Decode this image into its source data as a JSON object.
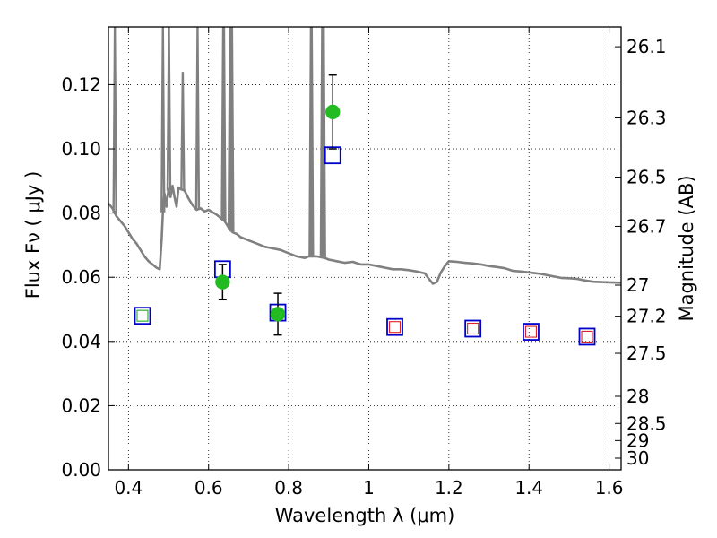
{
  "chart_data": {
    "type": "scatter",
    "xlabel": "Wavelength  λ (μm)",
    "ylabel": "Flux  Fν  ( μJy )",
    "y2label": "Magnitude (AB)",
    "xlim": [
      0.35,
      1.63
    ],
    "ylim": [
      0.0,
      0.138
    ],
    "x_ticks": [
      0.4,
      0.6,
      0.8,
      1.0,
      1.2,
      1.4,
      1.6
    ],
    "x_tick_labels": [
      "0.4",
      "0.6",
      "0.8",
      "1",
      "1.2",
      "1.4",
      "1.6"
    ],
    "y_ticks": [
      0.0,
      0.02,
      0.04,
      0.06,
      0.08,
      0.1,
      0.12
    ],
    "y_tick_labels": [
      "0.00",
      "0.02",
      "0.04",
      "0.06",
      "0.08",
      "0.10",
      "0.12"
    ],
    "y2_ticks": [
      {
        "label": "26.1",
        "value": 26.1
      },
      {
        "label": "26.3",
        "value": 26.3
      },
      {
        "label": "26.5",
        "value": 26.5
      },
      {
        "label": "26.7",
        "value": 26.7
      },
      {
        "label": "27",
        "value": 27.0
      },
      {
        "label": "27.2",
        "value": 27.2
      },
      {
        "label": "27.5",
        "value": 27.5
      },
      {
        "label": "28",
        "value": 28.0
      },
      {
        "label": "28.5",
        "value": 28.5
      },
      {
        "label": "29",
        "value": 29.0
      },
      {
        "label": "30",
        "value": 30.0
      }
    ],
    "grid": true,
    "colors": {
      "model": "#808080",
      "observed": "#22bb22",
      "model_band_box": "#0000cc",
      "inner_green": "#22aa22",
      "inner_red": "#dd2222",
      "errorbar": "#000000"
    },
    "observed_points": [
      {
        "x": 0.635,
        "y": 0.0585,
        "yerr": 0.0055
      },
      {
        "x": 0.773,
        "y": 0.0485,
        "yerr": 0.0065
      },
      {
        "x": 0.91,
        "y": 0.1115,
        "yerr": 0.0115
      }
    ],
    "model_band_points": [
      {
        "x": 0.435,
        "y": 0.048,
        "inner": "green"
      },
      {
        "x": 0.635,
        "y": 0.0625,
        "inner": "none"
      },
      {
        "x": 0.773,
        "y": 0.049,
        "inner": "none"
      },
      {
        "x": 0.91,
        "y": 0.098,
        "inner": "none"
      },
      {
        "x": 1.065,
        "y": 0.0445,
        "inner": "red"
      },
      {
        "x": 1.26,
        "y": 0.044,
        "inner": "red"
      },
      {
        "x": 1.405,
        "y": 0.043,
        "inner": "red"
      },
      {
        "x": 1.545,
        "y": 0.0415,
        "inner": "red"
      }
    ],
    "model_spectrum": [
      [
        0.35,
        0.083
      ],
      [
        0.36,
        0.0815
      ],
      [
        0.37,
        0.079
      ],
      [
        0.38,
        0.0775
      ],
      [
        0.39,
        0.076
      ],
      [
        0.4,
        0.074
      ],
      [
        0.41,
        0.072
      ],
      [
        0.42,
        0.0705
      ],
      [
        0.43,
        0.0685
      ],
      [
        0.44,
        0.0665
      ],
      [
        0.45,
        0.065
      ],
      [
        0.46,
        0.064
      ],
      [
        0.47,
        0.063
      ],
      [
        0.478,
        0.0625
      ],
      [
        0.483,
        0.072
      ],
      [
        0.487,
        0.083
      ],
      [
        0.49,
        0.086
      ],
      [
        0.495,
        0.082
      ],
      [
        0.5,
        0.0875
      ],
      [
        0.505,
        0.085
      ],
      [
        0.51,
        0.0885
      ],
      [
        0.515,
        0.085
      ],
      [
        0.52,
        0.082
      ],
      [
        0.525,
        0.088
      ],
      [
        0.53,
        0.0875
      ],
      [
        0.54,
        0.087
      ],
      [
        0.55,
        0.0845
      ],
      [
        0.56,
        0.0825
      ],
      [
        0.57,
        0.081
      ],
      [
        0.58,
        0.0815
      ],
      [
        0.59,
        0.0805
      ],
      [
        0.6,
        0.081
      ],
      [
        0.62,
        0.0795
      ],
      [
        0.63,
        0.0785
      ],
      [
        0.64,
        0.0775
      ],
      [
        0.65,
        0.0755
      ],
      [
        0.66,
        0.074
      ],
      [
        0.67,
        0.0735
      ],
      [
        0.68,
        0.0725
      ],
      [
        0.7,
        0.0715
      ],
      [
        0.72,
        0.0705
      ],
      [
        0.74,
        0.0695
      ],
      [
        0.76,
        0.069
      ],
      [
        0.78,
        0.0685
      ],
      [
        0.8,
        0.0675
      ],
      [
        0.82,
        0.0665
      ],
      [
        0.84,
        0.066
      ],
      [
        0.85,
        0.0665
      ],
      [
        0.87,
        0.0665
      ],
      [
        0.89,
        0.066
      ],
      [
        0.9,
        0.0655
      ],
      [
        0.92,
        0.065
      ],
      [
        0.94,
        0.0645
      ],
      [
        0.96,
        0.0648
      ],
      [
        0.98,
        0.064
      ],
      [
        1.0,
        0.064
      ],
      [
        1.02,
        0.0635
      ],
      [
        1.04,
        0.063
      ],
      [
        1.06,
        0.0625
      ],
      [
        1.08,
        0.0625
      ],
      [
        1.1,
        0.0622
      ],
      [
        1.12,
        0.0618
      ],
      [
        1.14,
        0.0612
      ],
      [
        1.15,
        0.0595
      ],
      [
        1.16,
        0.058
      ],
      [
        1.17,
        0.0585
      ],
      [
        1.18,
        0.0615
      ],
      [
        1.19,
        0.0635
      ],
      [
        1.2,
        0.065
      ],
      [
        1.22,
        0.0648
      ],
      [
        1.24,
        0.0645
      ],
      [
        1.26,
        0.0643
      ],
      [
        1.28,
        0.064
      ],
      [
        1.3,
        0.0635
      ],
      [
        1.32,
        0.0632
      ],
      [
        1.34,
        0.0628
      ],
      [
        1.36,
        0.062
      ],
      [
        1.38,
        0.0618
      ],
      [
        1.4,
        0.0615
      ],
      [
        1.42,
        0.0612
      ],
      [
        1.44,
        0.0608
      ],
      [
        1.46,
        0.0603
      ],
      [
        1.48,
        0.0598
      ],
      [
        1.5,
        0.0597
      ],
      [
        1.52,
        0.0595
      ],
      [
        1.54,
        0.059
      ],
      [
        1.56,
        0.0586
      ],
      [
        1.58,
        0.0585
      ],
      [
        1.6,
        0.0584
      ],
      [
        1.63,
        0.0583
      ]
    ],
    "emission_lines": [
      {
        "x": 0.366,
        "peak": 0.138
      },
      {
        "x": 0.486,
        "peak": 0.138
      },
      {
        "x": 0.501,
        "peak": 0.138
      },
      {
        "x": 0.5355,
        "peak": 0.124
      },
      {
        "x": 0.5725,
        "peak": 0.138
      },
      {
        "x": 0.6365,
        "peak": 0.138
      },
      {
        "x": 0.6385,
        "peak": 0.138
      },
      {
        "x": 0.6535,
        "peak": 0.138
      },
      {
        "x": 0.6565,
        "peak": 0.138
      },
      {
        "x": 0.6585,
        "peak": 0.138
      },
      {
        "x": 0.8555,
        "peak": 0.138
      },
      {
        "x": 0.8575,
        "peak": 0.138
      },
      {
        "x": 0.8835,
        "peak": 0.138
      },
      {
        "x": 0.8875,
        "peak": 0.138
      }
    ]
  }
}
